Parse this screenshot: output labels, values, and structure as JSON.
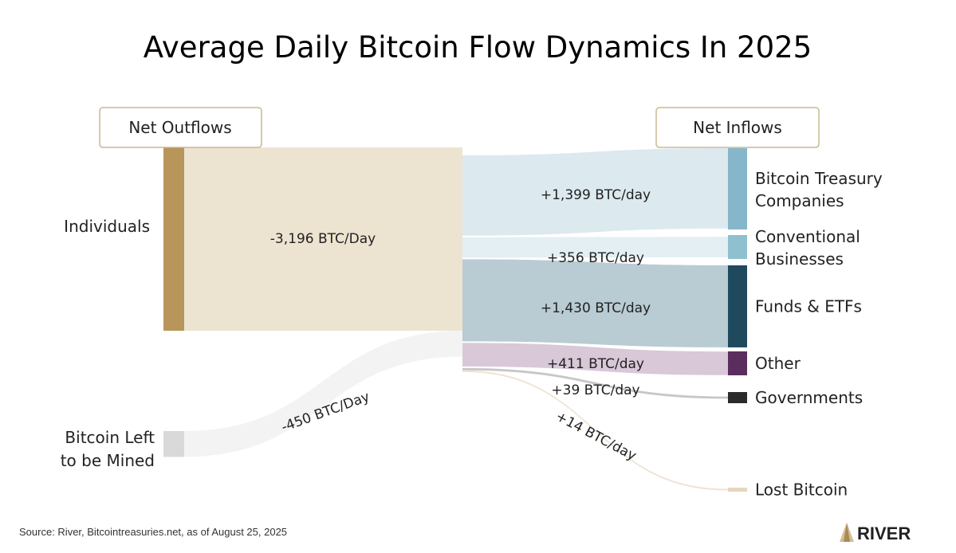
{
  "chart_data": {
    "type": "sankey",
    "title": "Average Daily Bitcoin Flow Dynamics In 2025",
    "headers": {
      "left": "Net Outflows",
      "right": "Net Inflows"
    },
    "sources": [
      {
        "name": "Individuals",
        "value": 3196,
        "label": "-3,196 BTC/Day",
        "node_color": "#b8955a",
        "flow_color": "#ede3d1"
      },
      {
        "name": "Bitcoin Left to be Mined",
        "lines": [
          "Bitcoin Left",
          "to be Mined"
        ],
        "value": 450,
        "label": "-450 BTC/Day",
        "node_color": "#d9d9d9",
        "flow_color": "#f3f3f3"
      }
    ],
    "targets": [
      {
        "name": "Bitcoin Treasury Companies",
        "lines": [
          "Bitcoin Treasury",
          "Companies"
        ],
        "value": 1399,
        "label": "+1,399 BTC/day",
        "node_color": "#86b6c9",
        "flow_color": "#dce9ef"
      },
      {
        "name": "Conventional Businesses",
        "lines": [
          "Conventional",
          "Businesses"
        ],
        "value": 356,
        "label": "+356 BTC/day",
        "node_color": "#8fc0d0",
        "flow_color": "#e3eff3"
      },
      {
        "name": "Funds & ETFs",
        "lines": [
          "Funds & ETFs"
        ],
        "value": 1430,
        "label": "+1,430 BTC/day",
        "node_color": "#1f4a5e",
        "flow_color": "#b9cbd3"
      },
      {
        "name": "Other",
        "lines": [
          "Other"
        ],
        "value": 411,
        "label": "+411 BTC/day",
        "node_color": "#5b2d5e",
        "flow_color": "#d8c8d8"
      },
      {
        "name": "Governments",
        "lines": [
          "Governments"
        ],
        "value": 39,
        "label": "+39 BTC/day",
        "node_color": "#2b2b2b",
        "flow_color": "#c7c7c7"
      },
      {
        "name": "Lost Bitcoin",
        "lines": [
          "Lost Bitcoin"
        ],
        "value": 14,
        "label": "+14 BTC/day",
        "node_color": "#e5d6bd",
        "flow_color": "#ede3d1"
      }
    ]
  },
  "footer": {
    "source": "Source: River, Bitcointreasuries.net, as of August 25, 2025",
    "logo": "RIVER"
  }
}
